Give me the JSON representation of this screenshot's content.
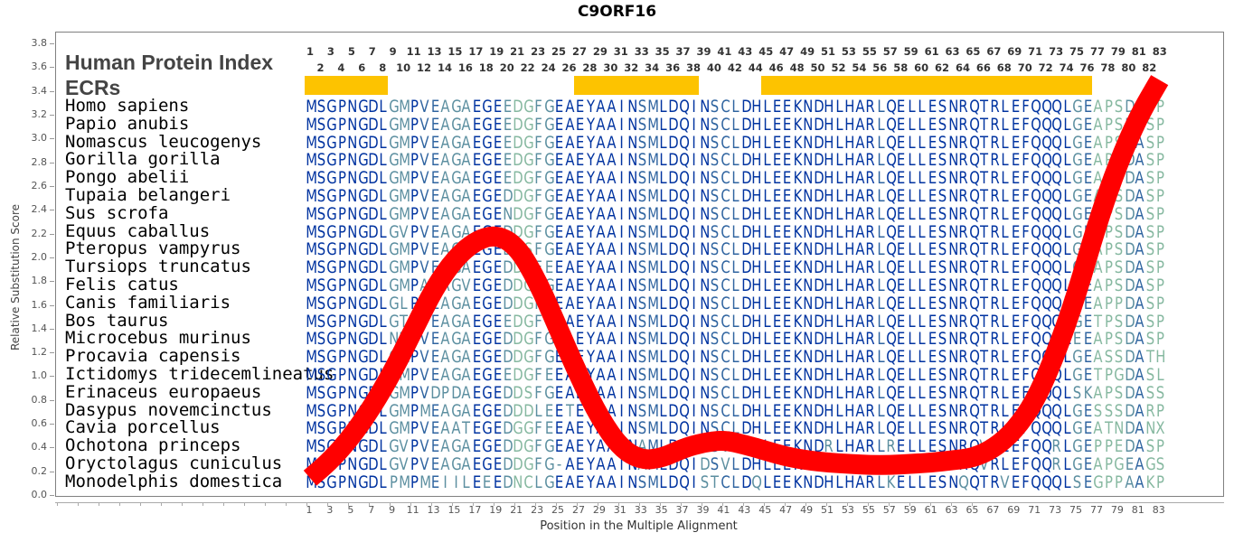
{
  "title": "C9ORF16",
  "panel_labels": {
    "index": "Human Protein Index",
    "ecrs": "ECRs"
  },
  "colors": {
    "ecr_bar": "#fdc300",
    "curve": "#ff0000",
    "residue_conserved": "#0033a0",
    "residue_mid": "#2f64a0",
    "residue_low": "#5c8fa0",
    "residue_var": "#86b8a0"
  },
  "ecr_regions": [
    {
      "start": 1,
      "end": 8
    },
    {
      "start": 27,
      "end": 38
    },
    {
      "start": 45,
      "end": 76
    }
  ],
  "species": [
    {
      "name": "Homo sapiens",
      "seq": "MSGPNGDLGMPVEAGAEGEEDGFGEAEYAAINSMLDQINSCLDHLEEKNDHLHARLQELLESNRQTRLEFQQQLGEAPSDASP"
    },
    {
      "name": "Papio anubis",
      "seq": "MSGPNGDLGMPVEAGAEGEEDGFGEAEYAAINSMLDQINSCLDHLEEKNDHLHARLQELLESNRQTRLEFQQQLGEAPSDASP"
    },
    {
      "name": "Nomascus leucogenys",
      "seq": "MSGPNGDLGMPVEAGAEGEEDGFGEAEYAAINSMLDQINSCLDHLEEKNDHLHARLQELLESNRQTRLEFQQQLGEAPSDASP"
    },
    {
      "name": "Gorilla gorilla",
      "seq": "MSGPNGDLGMPVEAGAEGEEDGFGEAEYAAINSMLDQINSCLDHLEEKNDHLHARLQELLESNRQTRLEFQQQLGEAPSDASP"
    },
    {
      "name": "Pongo abelii",
      "seq": "MSGPNGDLGMPVEAGAEGEEDGFGEAEYAAINSMLDQINSCLDHLEEKNDHLHARLQELLESNRQTRLEFQQQLGEAPSDASP"
    },
    {
      "name": "Tupaia belangeri",
      "seq": "MSGPNGDLGMPVEAGAEGEDDGFGEAEYAAINSMLDQINSCLDHLEEKNDHLHARLQELLESNRQTRLEFQQQLGEAPSDASP"
    },
    {
      "name": "Sus scrofa",
      "seq": "MSGPNGDLGMPVEAGAEGENDGFGEAEYAAINSMLDQINSCLDHLEEKNDHLHARLQELLESNRQTRLEFQQQLGEAPSDASP"
    },
    {
      "name": "Equus caballus",
      "seq": "MSGPNGDLGVPVEAGAEGEDDGFGEAEYAAINSMLDQINSCLDHLEEKNDHLHARLQELLESNRQTRLEFQQQLGEAPSDASP"
    },
    {
      "name": "Pteropus vampyrus",
      "seq": "MSGPNGDLGMPVEAGAEGEDDSFGEAEYAAINSMLDQINSCLDHLEEKNDHLHARLQELLESNRQTRLEFQQQLGEAPSDASP"
    },
    {
      "name": "Tursiops truncatus",
      "seq": "MSGPNGDLGMPVEAGAEGEDDGFEEAEYAAINSMLDQINSCLDHLEEKNDHLHARLQELLESNRQTRLEFQQQLGEAPSDASP"
    },
    {
      "name": "Felis catus",
      "seq": "MSGPNGDLGMPAEAGVEGEDDGFGEAEYAAINSMLDQINSCLDHLEEKNDHLHARLQELLESNRQTRLEFQQQLGEAPSDASP"
    },
    {
      "name": "Canis familiaris",
      "seq": "MSGPNGDLGLPVEAGAEGEDDGFGEAEYAAINSMLDQINSCLDHLEEKNDHLHARLQELLESNRQTRLEFQQQLGEAPPDASP"
    },
    {
      "name": "Bos taurus",
      "seq": "MSGPNGDLGTPVEAGAEGEEDGFGEAEYAAINSMLDQINSCLDHLEEKNDHLHARLQELLESNRQTRLEFQQQLGETPSDASP"
    },
    {
      "name": "Microcebus murinus",
      "seq": "MSGPNGDLNMPVEAGAEGEDDGFGEAEYAAINSMLDQINSCLDHLEEKNDHLHARLQELLESNRQTRLEFQQQLEEAPSDASP"
    },
    {
      "name": "Procavia capensis",
      "seq": "MSGPNGDLGMPVEAGAEGEDDGFGEAEYAAINSMLDQINSCLDHLEEKNDHLHARLQELLESNRQTRLEFQQQLGEASSDATH"
    },
    {
      "name": "Ictidomys tridecemlineatus",
      "seq": "MSGPNGDLGMPVEAGAEGEEDGFEEAEYAAINSMLDQINSCLDHLEEKNDHLHARLQELLESNRQTRLEFQQQLGETPGDASL"
    },
    {
      "name": "Erinaceus europaeus",
      "seq": "MSGPNGDLGMPVDPDAEGEDDSFGEAEYAAINSMLDQINSCLDHLEEKNDHLHARLQELLESNRQTRLEFQQQLSKAPSDASS"
    },
    {
      "name": "Dasypus novemcinctus",
      "seq": "MSGPNGDLGMPMEAGAEGEDDDLEETEYAAINSMLDQINSCLDHLEEKNDHLHARLQELLESNRQTRLEFQQQLGESSSDARP"
    },
    {
      "name": "Cavia porcellus",
      "seq": "MSGPNGDLGMPVEAATEGEDGGFEEAEYAAINSMLDQINSCLDHLEEKNDHLHARLQELLESNRQTRLEFQQQLGEATNDANX"
    },
    {
      "name": "Ochotona princeps",
      "seq": "MSGPNGDLGVPVEAGAEGEDDGFGEAEYAAINAMLDQIDSVLDHLEEKNDRLHARLRELLESNRQVRLEFQQRLGEPPEDASP"
    },
    {
      "name": "Oryctolagus cuniculus",
      "seq": "MSGPNGDLGVPVEAGAEGEDDGFG-AEYAAINAMLDQIDSVLDHLEEKNDRLHARLRELLESNRQVRLEFQQRLGEAPGEAGS"
    },
    {
      "name": "Monodelphis domestica",
      "seq": "MSGPNGDLPMPMEIILEEEDNCLGEAEYAAINSMLDQISTCLDQLEEKNDHLHARLKELLESNQQTRVEFQQQLSEGPPAAKP"
    }
  ],
  "conservation": [
    0,
    0,
    0,
    0,
    0,
    0,
    0,
    0,
    2,
    2,
    0,
    1,
    1,
    2,
    2,
    2,
    0,
    0,
    0,
    2,
    3,
    3,
    2,
    2,
    0,
    0,
    0,
    0,
    0,
    0,
    0,
    0,
    1,
    1,
    0,
    0,
    0,
    0,
    0,
    1,
    1,
    1,
    0,
    0,
    0,
    0,
    0,
    0,
    0,
    0,
    0,
    0,
    0,
    0,
    0,
    1,
    0,
    0,
    0,
    0,
    0,
    0,
    0,
    0,
    0,
    0,
    0,
    0,
    0,
    0,
    0,
    0,
    0,
    0,
    2,
    1,
    3,
    3,
    3,
    2,
    1,
    3,
    3
  ],
  "chart_data": {
    "type": "line",
    "title": "C9ORF16",
    "xlabel": "Position in the Multiple Alignment",
    "ylabel": "Relative Substitution Score",
    "ylim": [
      0.0,
      3.9
    ],
    "xlim": [
      1,
      83
    ],
    "yticks": [
      "0.0",
      "0.2",
      "0.4",
      "0.6",
      "0.8",
      "1.0",
      "1.2",
      "1.4",
      "1.6",
      "1.8",
      "2.0",
      "2.2",
      "2.4",
      "2.6",
      "2.8",
      "3.0",
      "3.2",
      "3.4",
      "3.6",
      "3.8"
    ],
    "xticks": [
      "1",
      "3",
      "5",
      "7",
      "9",
      "11",
      "13",
      "15",
      "17",
      "19",
      "21",
      "23",
      "25",
      "27",
      "29",
      "31",
      "33",
      "35",
      "37",
      "39",
      "41",
      "43",
      "45",
      "47",
      "49",
      "51",
      "53",
      "55",
      "57",
      "59",
      "61",
      "63",
      "65",
      "67",
      "69",
      "71",
      "73",
      "75",
      "77",
      "79",
      "81",
      "83"
    ],
    "series": [
      {
        "name": "Relative Substitution Score",
        "x": [
          1,
          3,
          5,
          7,
          9,
          11,
          13,
          15,
          17,
          19,
          21,
          23,
          25,
          27,
          29,
          31,
          33,
          35,
          37,
          39,
          41,
          43,
          45,
          47,
          49,
          51,
          53,
          55,
          57,
          59,
          61,
          63,
          65,
          67,
          69,
          71,
          73,
          75,
          77,
          79,
          81,
          83
        ],
        "values": [
          0.15,
          0.3,
          0.5,
          0.75,
          1.05,
          1.4,
          1.75,
          2.0,
          2.15,
          2.2,
          2.1,
          1.8,
          1.4,
          1.0,
          0.65,
          0.4,
          0.3,
          0.32,
          0.4,
          0.45,
          0.47,
          0.43,
          0.38,
          0.33,
          0.3,
          0.28,
          0.27,
          0.26,
          0.26,
          0.27,
          0.28,
          0.3,
          0.32,
          0.4,
          0.55,
          0.8,
          1.2,
          1.7,
          2.3,
          2.8,
          3.2,
          3.5
        ]
      }
    ],
    "top_index_ticks_odd": [
      "1",
      "3",
      "5",
      "7",
      "9",
      "11",
      "13",
      "15",
      "17",
      "19",
      "21",
      "23",
      "25",
      "27",
      "29",
      "31",
      "33",
      "35",
      "37",
      "39",
      "41",
      "43",
      "45",
      "47",
      "49",
      "51",
      "53",
      "55",
      "57",
      "59",
      "61",
      "63",
      "65",
      "67",
      "69",
      "71",
      "73",
      "75",
      "77",
      "79",
      "81",
      "83"
    ],
    "top_index_ticks_even": [
      "2",
      "4",
      "6",
      "8",
      "10",
      "12",
      "14",
      "16",
      "18",
      "20",
      "22",
      "24",
      "26",
      "28",
      "30",
      "32",
      "34",
      "36",
      "38",
      "40",
      "42",
      "44",
      "46",
      "48",
      "50",
      "52",
      "54",
      "56",
      "58",
      "60",
      "62",
      "64",
      "66",
      "68",
      "70",
      "72",
      "74",
      "76",
      "78",
      "80",
      "82"
    ],
    "grid": false
  }
}
